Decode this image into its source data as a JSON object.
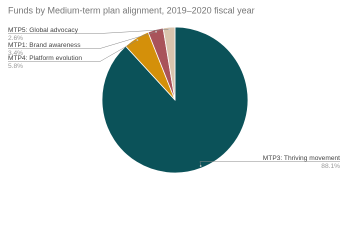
{
  "chart_data": {
    "type": "pie",
    "title": "Funds by Medium-term plan alignment, 2019–2020 fiscal year",
    "categories": [
      "MTP3: Thriving movement",
      "MTP4: Platform evolution",
      "MTP1: Brand awareness",
      "MTP5: Global advocacy"
    ],
    "values": [
      88.1,
      5.8,
      3.4,
      2.6
    ],
    "value_labels": [
      "88.1%",
      "5.8%",
      "3.4%",
      "2.6%"
    ],
    "colors": [
      "#0b5259",
      "#d4900a",
      "#a9535a",
      "#d9c4ad"
    ]
  }
}
